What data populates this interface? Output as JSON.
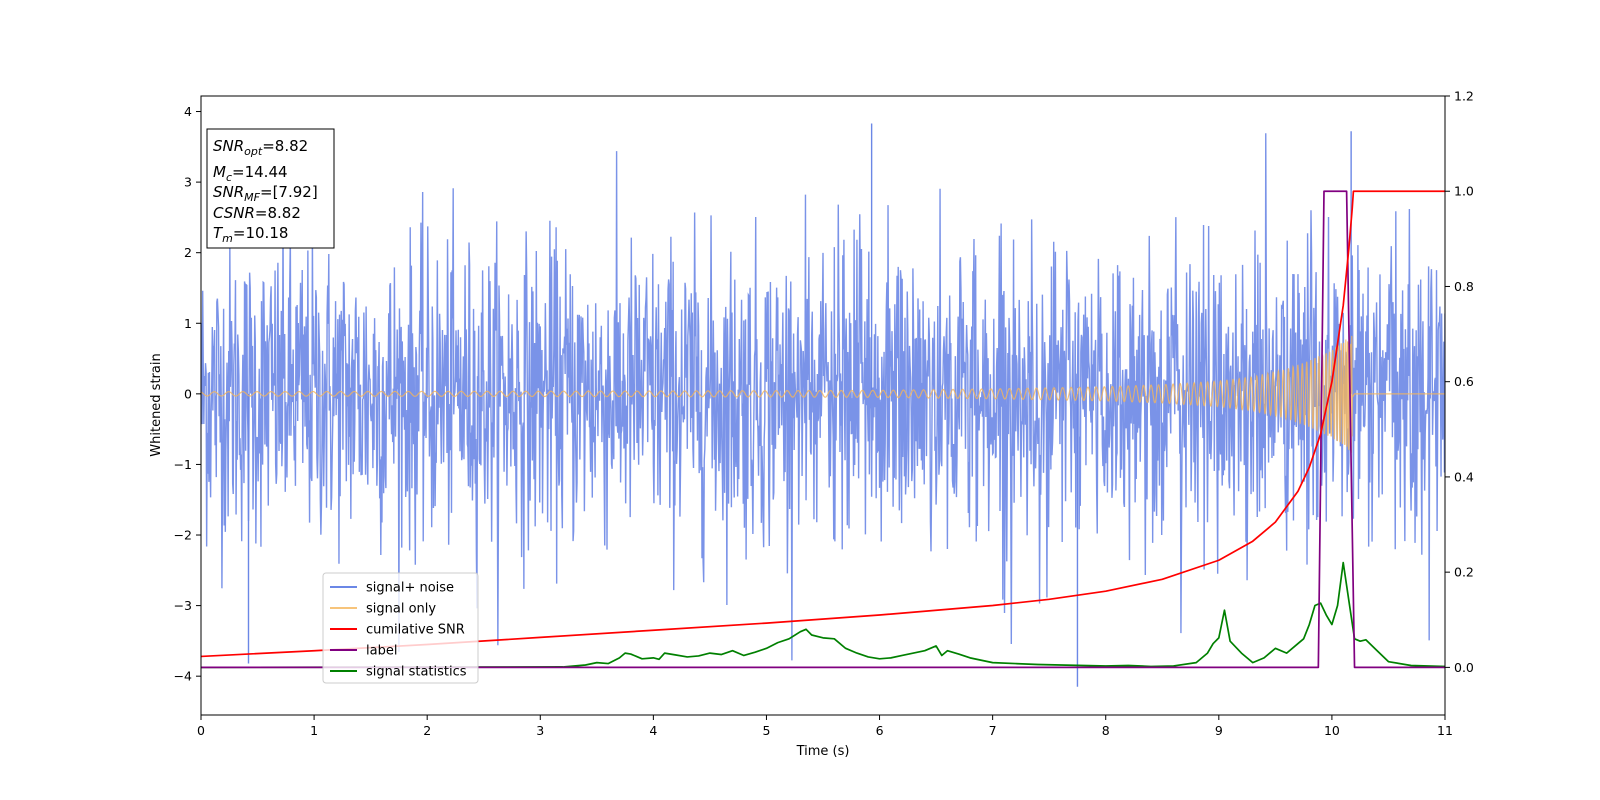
{
  "chart_data": {
    "type": "line",
    "xlabel": "Time (s)",
    "ylabel": "Whitened strain",
    "xlim": [
      0,
      11
    ],
    "ylim_left": [
      -4.55,
      4.22
    ],
    "ylim_right": [
      -0.1,
      1.2
    ],
    "x_ticks": [
      0,
      1,
      2,
      3,
      4,
      5,
      6,
      7,
      8,
      9,
      10,
      11
    ],
    "y_ticks_left": [
      -4,
      -3,
      -2,
      -1,
      0,
      1,
      2,
      3,
      4
    ],
    "y_ticks_right": [
      0.0,
      0.2,
      0.4,
      0.6,
      0.8,
      1.0,
      1.2
    ],
    "grid": false,
    "legend_position": "lower-left",
    "annotation_box": {
      "position": "top-left",
      "lines": [
        {
          "base": "SNR",
          "sub": "opt",
          "value": "=8.82"
        },
        {
          "base": "M",
          "sub": "c",
          "value": "=14.44"
        },
        {
          "base": "SNR",
          "sub": "MF",
          "value": "=[7.92]"
        },
        {
          "base": "CSNR",
          "sub": "",
          "value": "=8.82"
        },
        {
          "base": "T",
          "sub": "m",
          "value": "=10.18"
        }
      ]
    },
    "series": [
      {
        "name": "signal+ noise",
        "axis": "left",
        "color": "#6b87e6",
        "style": "noise",
        "envelope_approx": [
          -3.9,
          3.8
        ],
        "notable_points": [
          [
            0.42,
            -3.82
          ],
          [
            5.93,
            3.83
          ],
          [
            7.75,
            -4.15
          ],
          [
            10.17,
            3.72
          ]
        ]
      },
      {
        "name": "signal only",
        "axis": "left",
        "color": "#f5b55a",
        "style": "chirp",
        "merger_time": 10.18,
        "envelope": [
          [
            0,
            0.03
          ],
          [
            4,
            0.04
          ],
          [
            6,
            0.05
          ],
          [
            7,
            0.07
          ],
          [
            8,
            0.1
          ],
          [
            8.5,
            0.13
          ],
          [
            9,
            0.18
          ],
          [
            9.3,
            0.24
          ],
          [
            9.6,
            0.35
          ],
          [
            9.8,
            0.47
          ],
          [
            10,
            0.62
          ],
          [
            10.1,
            0.74
          ],
          [
            10.18,
            0.85
          ]
        ]
      },
      {
        "name": "cumilative SNR",
        "axis": "right",
        "color": "#ff0000",
        "x": [
          0,
          1,
          2,
          3,
          4,
          5,
          6,
          7,
          7.5,
          8,
          8.5,
          9,
          9.3,
          9.5,
          9.7,
          9.8,
          9.9,
          10,
          10.1,
          10.15,
          10.18,
          10.19,
          11
        ],
        "y": [
          0.023,
          0.035,
          0.048,
          0.063,
          0.078,
          0.093,
          0.11,
          0.13,
          0.143,
          0.16,
          0.185,
          0.225,
          0.265,
          0.305,
          0.37,
          0.42,
          0.49,
          0.6,
          0.76,
          0.88,
          0.965,
          1.0,
          1.0
        ]
      },
      {
        "name": "label",
        "axis": "right",
        "color": "#800080",
        "x": [
          0,
          9.88,
          9.93,
          10.13,
          10.2,
          11
        ],
        "y": [
          0,
          0,
          1.0,
          1.0,
          0,
          0
        ]
      },
      {
        "name": "signal statistics",
        "axis": "right",
        "color": "#008000",
        "x": [
          0,
          3.2,
          3.4,
          3.5,
          3.6,
          3.7,
          3.75,
          3.8,
          3.9,
          4.0,
          4.05,
          4.1,
          4.2,
          4.3,
          4.4,
          4.5,
          4.6,
          4.7,
          4.8,
          4.9,
          5.0,
          5.1,
          5.2,
          5.3,
          5.35,
          5.4,
          5.5,
          5.6,
          5.7,
          5.8,
          5.9,
          6.0,
          6.1,
          6.2,
          6.3,
          6.4,
          6.5,
          6.55,
          6.6,
          6.7,
          6.8,
          6.9,
          7.0,
          7.2,
          7.4,
          7.6,
          7.8,
          8.0,
          8.2,
          8.4,
          8.6,
          8.8,
          8.9,
          8.95,
          9.0,
          9.05,
          9.1,
          9.2,
          9.3,
          9.4,
          9.5,
          9.6,
          9.7,
          9.75,
          9.8,
          9.85,
          9.9,
          9.95,
          10.0,
          10.05,
          10.1,
          10.15,
          10.2,
          10.25,
          10.3,
          10.4,
          10.5,
          10.7,
          11
        ],
        "y": [
          0.0,
          0.001,
          0.005,
          0.01,
          0.008,
          0.02,
          0.03,
          0.028,
          0.018,
          0.02,
          0.017,
          0.03,
          0.026,
          0.022,
          0.024,
          0.03,
          0.027,
          0.035,
          0.025,
          0.032,
          0.04,
          0.052,
          0.06,
          0.075,
          0.08,
          0.068,
          0.062,
          0.06,
          0.04,
          0.03,
          0.022,
          0.018,
          0.02,
          0.025,
          0.03,
          0.035,
          0.045,
          0.025,
          0.035,
          0.028,
          0.02,
          0.015,
          0.01,
          0.008,
          0.006,
          0.005,
          0.004,
          0.003,
          0.004,
          0.002,
          0.003,
          0.01,
          0.03,
          0.05,
          0.062,
          0.12,
          0.055,
          0.03,
          0.01,
          0.02,
          0.04,
          0.03,
          0.05,
          0.06,
          0.09,
          0.13,
          0.135,
          0.11,
          0.09,
          0.13,
          0.22,
          0.14,
          0.06,
          0.055,
          0.058,
          0.035,
          0.012,
          0.004,
          0.002
        ]
      }
    ]
  }
}
